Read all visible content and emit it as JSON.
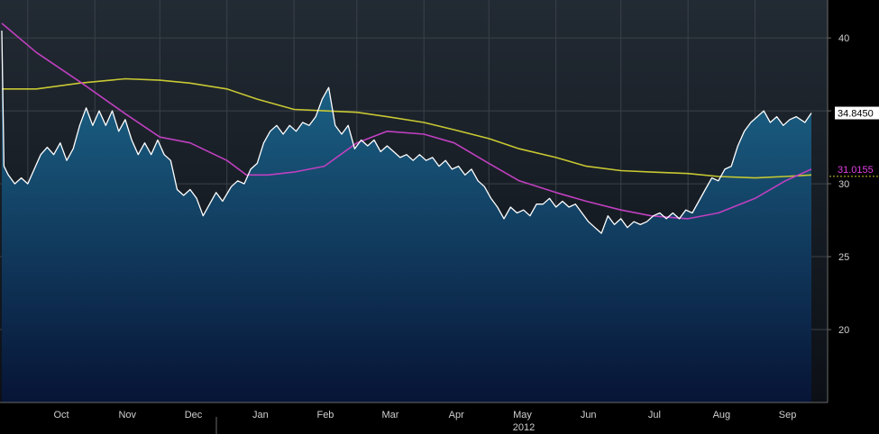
{
  "chart_data": {
    "type": "area",
    "title": "",
    "xlabel": "",
    "ylabel": "",
    "ylim": [
      15,
      42.6
    ],
    "grid": true,
    "y_ticks": [
      20,
      25,
      30,
      35,
      40
    ],
    "x_tick_labels": [
      "Oct",
      "Nov",
      "Dec",
      "Jan",
      "Feb",
      "Mar",
      "Apr",
      "May",
      "Jun",
      "Jul",
      "Aug",
      "Sep"
    ],
    "year_label": "2012",
    "x_start": "2011-09-19",
    "x_end": "2012-09-27",
    "last_value_labels": [
      {
        "series": "price",
        "text": "34.8450"
      },
      {
        "series": "ma_short",
        "text": "31.0155"
      }
    ],
    "series": [
      {
        "name": "",
        "role": "price",
        "color": "#ffffff",
        "fill_top": "#1e6e92",
        "fill_bottom": "#071436",
        "points": [
          [
            "2011-09-19",
            40.5
          ],
          [
            "2011-09-20",
            31.2
          ],
          [
            "2011-09-22",
            30.6
          ],
          [
            "2011-09-25",
            30.0
          ],
          [
            "2011-09-28",
            30.4
          ],
          [
            "2011-10-01",
            30.0
          ],
          [
            "2011-10-04",
            31.0
          ],
          [
            "2011-10-07",
            32.0
          ],
          [
            "2011-10-10",
            32.5
          ],
          [
            "2011-10-13",
            32.0
          ],
          [
            "2011-10-16",
            32.8
          ],
          [
            "2011-10-19",
            31.6
          ],
          [
            "2011-10-22",
            32.4
          ],
          [
            "2011-10-25",
            34.0
          ],
          [
            "2011-10-28",
            35.2
          ],
          [
            "2011-10-31",
            34.0
          ],
          [
            "2011-11-03",
            35.0
          ],
          [
            "2011-11-06",
            34.0
          ],
          [
            "2011-11-09",
            35.0
          ],
          [
            "2011-11-12",
            33.6
          ],
          [
            "2011-11-15",
            34.4
          ],
          [
            "2011-11-18",
            33.0
          ],
          [
            "2011-11-21",
            32.0
          ],
          [
            "2011-11-24",
            32.8
          ],
          [
            "2011-11-27",
            32.0
          ],
          [
            "2011-11-30",
            33.0
          ],
          [
            "2011-12-03",
            32.0
          ],
          [
            "2011-12-06",
            31.6
          ],
          [
            "2011-12-09",
            29.6
          ],
          [
            "2011-12-12",
            29.2
          ],
          [
            "2011-12-15",
            29.6
          ],
          [
            "2011-12-18",
            29.0
          ],
          [
            "2011-12-21",
            27.8
          ],
          [
            "2011-12-24",
            28.6
          ],
          [
            "2011-12-27",
            29.4
          ],
          [
            "2011-12-30",
            28.8
          ],
          [
            "2012-01-03",
            29.8
          ],
          [
            "2012-01-06",
            30.2
          ],
          [
            "2012-01-09",
            30.0
          ],
          [
            "2012-01-12",
            31.0
          ],
          [
            "2012-01-15",
            31.4
          ],
          [
            "2012-01-18",
            32.8
          ],
          [
            "2012-01-21",
            33.6
          ],
          [
            "2012-01-24",
            34.0
          ],
          [
            "2012-01-27",
            33.4
          ],
          [
            "2012-01-30",
            34.0
          ],
          [
            "2012-02-02",
            33.6
          ],
          [
            "2012-02-05",
            34.2
          ],
          [
            "2012-02-08",
            34.0
          ],
          [
            "2012-02-11",
            34.6
          ],
          [
            "2012-02-14",
            35.8
          ],
          [
            "2012-02-17",
            36.6
          ],
          [
            "2012-02-20",
            34.0
          ],
          [
            "2012-02-23",
            33.4
          ],
          [
            "2012-02-26",
            34.0
          ],
          [
            "2012-02-29",
            32.4
          ],
          [
            "2012-03-03",
            33.0
          ],
          [
            "2012-03-06",
            32.6
          ],
          [
            "2012-03-09",
            33.0
          ],
          [
            "2012-03-12",
            32.2
          ],
          [
            "2012-03-15",
            32.6
          ],
          [
            "2012-03-18",
            32.2
          ],
          [
            "2012-03-21",
            31.8
          ],
          [
            "2012-03-24",
            32.0
          ],
          [
            "2012-03-27",
            31.6
          ],
          [
            "2012-03-30",
            32.0
          ],
          [
            "2012-04-02",
            31.6
          ],
          [
            "2012-04-05",
            31.8
          ],
          [
            "2012-04-08",
            31.2
          ],
          [
            "2012-04-11",
            31.6
          ],
          [
            "2012-04-14",
            31.0
          ],
          [
            "2012-04-17",
            31.2
          ],
          [
            "2012-04-20",
            30.6
          ],
          [
            "2012-04-23",
            31.0
          ],
          [
            "2012-04-26",
            30.2
          ],
          [
            "2012-04-29",
            29.8
          ],
          [
            "2012-05-02",
            29.0
          ],
          [
            "2012-05-05",
            28.4
          ],
          [
            "2012-05-08",
            27.6
          ],
          [
            "2012-05-11",
            28.4
          ],
          [
            "2012-05-14",
            28.0
          ],
          [
            "2012-05-17",
            28.2
          ],
          [
            "2012-05-20",
            27.8
          ],
          [
            "2012-05-23",
            28.6
          ],
          [
            "2012-05-26",
            28.6
          ],
          [
            "2012-05-29",
            29.0
          ],
          [
            "2012-06-01",
            28.4
          ],
          [
            "2012-06-04",
            28.8
          ],
          [
            "2012-06-07",
            28.4
          ],
          [
            "2012-06-10",
            28.6
          ],
          [
            "2012-06-13",
            28.0
          ],
          [
            "2012-06-16",
            27.4
          ],
          [
            "2012-06-19",
            27.0
          ],
          [
            "2012-06-22",
            26.6
          ],
          [
            "2012-06-25",
            27.8
          ],
          [
            "2012-06-28",
            27.2
          ],
          [
            "2012-07-01",
            27.6
          ],
          [
            "2012-07-04",
            27.0
          ],
          [
            "2012-07-07",
            27.4
          ],
          [
            "2012-07-10",
            27.2
          ],
          [
            "2012-07-13",
            27.4
          ],
          [
            "2012-07-16",
            27.8
          ],
          [
            "2012-07-19",
            28.0
          ],
          [
            "2012-07-22",
            27.6
          ],
          [
            "2012-07-25",
            28.0
          ],
          [
            "2012-07-28",
            27.6
          ],
          [
            "2012-07-31",
            28.2
          ],
          [
            "2012-08-03",
            28.0
          ],
          [
            "2012-08-06",
            28.8
          ],
          [
            "2012-08-09",
            29.6
          ],
          [
            "2012-08-12",
            30.4
          ],
          [
            "2012-08-15",
            30.2
          ],
          [
            "2012-08-18",
            31.0
          ],
          [
            "2012-08-21",
            31.2
          ],
          [
            "2012-08-24",
            32.6
          ],
          [
            "2012-08-27",
            33.6
          ],
          [
            "2012-08-30",
            34.2
          ],
          [
            "2012-09-02",
            34.6
          ],
          [
            "2012-09-05",
            35.0
          ],
          [
            "2012-09-08",
            34.2
          ],
          [
            "2012-09-11",
            34.6
          ],
          [
            "2012-09-14",
            34.0
          ],
          [
            "2012-09-17",
            34.4
          ],
          [
            "2012-09-20",
            34.6
          ],
          [
            "2012-09-24",
            34.2
          ],
          [
            "2012-09-27",
            34.85
          ]
        ]
      },
      {
        "name": "",
        "role": "ma_short",
        "color": "#c040c0",
        "points": [
          [
            "2011-09-19",
            41.0
          ],
          [
            "2011-10-05",
            39.0
          ],
          [
            "2011-10-25",
            37.0
          ],
          [
            "2011-11-15",
            34.8
          ],
          [
            "2011-12-01",
            33.2
          ],
          [
            "2011-12-15",
            32.8
          ],
          [
            "2012-01-01",
            31.6
          ],
          [
            "2012-01-10",
            30.6
          ],
          [
            "2012-01-20",
            30.6
          ],
          [
            "2012-02-01",
            30.8
          ],
          [
            "2012-02-15",
            31.2
          ],
          [
            "2012-03-01",
            32.8
          ],
          [
            "2012-03-15",
            33.6
          ],
          [
            "2012-04-01",
            33.4
          ],
          [
            "2012-04-15",
            32.8
          ],
          [
            "2012-05-01",
            31.4
          ],
          [
            "2012-05-15",
            30.2
          ],
          [
            "2012-06-01",
            29.4
          ],
          [
            "2012-06-15",
            28.8
          ],
          [
            "2012-07-01",
            28.2
          ],
          [
            "2012-07-15",
            27.8
          ],
          [
            "2012-08-01",
            27.6
          ],
          [
            "2012-08-15",
            28.0
          ],
          [
            "2012-09-01",
            29.0
          ],
          [
            "2012-09-15",
            30.2
          ],
          [
            "2012-09-27",
            31.0
          ]
        ]
      },
      {
        "name": "",
        "role": "ma_long",
        "color": "#c8c832",
        "points": [
          [
            "2011-09-19",
            36.5
          ],
          [
            "2011-10-05",
            36.5
          ],
          [
            "2011-10-25",
            36.9
          ],
          [
            "2011-11-15",
            37.2
          ],
          [
            "2011-12-01",
            37.1
          ],
          [
            "2011-12-15",
            36.9
          ],
          [
            "2012-01-01",
            36.5
          ],
          [
            "2012-01-15",
            35.8
          ],
          [
            "2012-02-01",
            35.1
          ],
          [
            "2012-02-15",
            35.0
          ],
          [
            "2012-03-01",
            34.9
          ],
          [
            "2012-03-15",
            34.6
          ],
          [
            "2012-04-01",
            34.2
          ],
          [
            "2012-04-15",
            33.7
          ],
          [
            "2012-05-01",
            33.1
          ],
          [
            "2012-05-15",
            32.4
          ],
          [
            "2012-06-01",
            31.8
          ],
          [
            "2012-06-15",
            31.2
          ],
          [
            "2012-07-01",
            30.9
          ],
          [
            "2012-07-15",
            30.8
          ],
          [
            "2012-08-01",
            30.7
          ],
          [
            "2012-08-15",
            30.5
          ],
          [
            "2012-09-01",
            30.4
          ],
          [
            "2012-09-15",
            30.5
          ],
          [
            "2012-09-27",
            30.6
          ]
        ]
      }
    ]
  }
}
